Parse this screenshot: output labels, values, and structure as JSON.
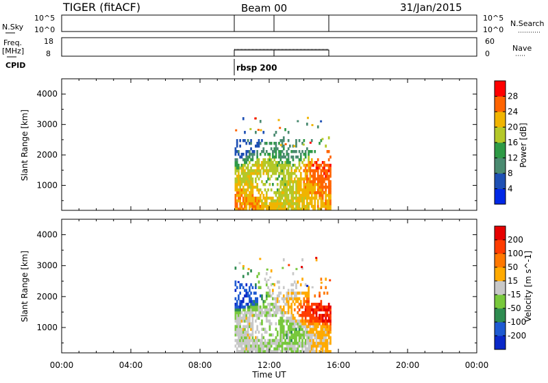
{
  "header": {
    "title": "TIGER (fitACF)",
    "beam": "Beam 00",
    "date": "31/Jan/2015"
  },
  "strips": {
    "nsky": {
      "label": "N.Sky",
      "ticks": [
        "10^5",
        "10^0"
      ]
    },
    "nsearch": {
      "label": "N.Search",
      "ticks": [
        "10^5",
        "10^0"
      ]
    },
    "freq": {
      "label": "Freq.",
      "unit": "[MHz]",
      "ticks": [
        "18",
        "8"
      ]
    },
    "nave": {
      "label": "Nave",
      "ticks": [
        "60",
        "0"
      ]
    },
    "cpid": {
      "label": "CPID",
      "value": "rbsp 200"
    }
  },
  "chart_data": [
    {
      "type": "heatmap",
      "name": "power",
      "ylabel": "Slant Range [km]",
      "xlabel": "Time UT",
      "xlim": [
        0,
        24
      ],
      "ylim": [
        180,
        4500
      ],
      "x_ticks": [
        "00:00",
        "04:00",
        "08:00",
        "12:00",
        "16:00",
        "20:00",
        "00:00"
      ],
      "y_ticks": [
        1000,
        2000,
        3000,
        4000
      ],
      "colorbar": {
        "label": "Power [dB]",
        "range": [
          0,
          32
        ],
        "tick_labels": [
          "28",
          "24",
          "20",
          "16",
          "12",
          "8",
          "4"
        ],
        "colors": [
          "#0028e6",
          "#1e50b4",
          "#4a8a70",
          "#2e9a46",
          "#b4c828",
          "#f0b400",
          "#ff6400",
          "#ff0000"
        ]
      },
      "data_extent": {
        "start_time": 10.0,
        "end_time": 15.5,
        "min_range": 180,
        "max_range": 3300
      },
      "approx_values": [
        {
          "time": 10.5,
          "range": 300,
          "value": 24
        },
        {
          "time": 11.0,
          "range": 600,
          "value": 22
        },
        {
          "time": 11.5,
          "range": 1300,
          "value": 20
        },
        {
          "time": 12.0,
          "range": 1100,
          "value": 16
        },
        {
          "time": 13.0,
          "range": 900,
          "value": 18
        },
        {
          "time": 14.0,
          "range": 900,
          "value": 22
        },
        {
          "time": 15.0,
          "range": 1200,
          "value": 26
        },
        {
          "time": 15.2,
          "range": 1500,
          "value": 28
        },
        {
          "time": 13.5,
          "range": 2200,
          "value": 10
        },
        {
          "time": 10.2,
          "range": 2300,
          "value": 6
        }
      ]
    },
    {
      "type": "heatmap",
      "name": "velocity",
      "ylabel": "Slant Range [km]",
      "xlabel": "Time UT",
      "xlim": [
        0,
        24
      ],
      "ylim": [
        180,
        4500
      ],
      "x_ticks": [
        "00:00",
        "04:00",
        "08:00",
        "12:00",
        "16:00",
        "20:00",
        "00:00"
      ],
      "y_ticks": [
        1000,
        2000,
        3000,
        4000
      ],
      "colorbar": {
        "label": "Velocity [m s^-1]",
        "range": [
          -250,
          250
        ],
        "tick_labels": [
          "200",
          "100",
          "50",
          "15",
          "-15",
          "-50",
          "-100",
          "-200"
        ],
        "colors": [
          "#0a28c8",
          "#1e5ad2",
          "#2e8c50",
          "#78c83c",
          "#c8c8c8",
          "#ffaa00",
          "#ff7800",
          "#ff3c00",
          "#e60000"
        ]
      },
      "data_extent": {
        "start_time": 10.0,
        "end_time": 15.5,
        "min_range": 180,
        "max_range": 3300
      },
      "approx_values": [
        {
          "time": 10.3,
          "range": 1850,
          "value": -200
        },
        {
          "time": 10.8,
          "range": 1300,
          "value": 0
        },
        {
          "time": 11.2,
          "range": 800,
          "value": 0
        },
        {
          "time": 12.5,
          "range": 900,
          "value": -40
        },
        {
          "time": 13.5,
          "range": 800,
          "value": -60
        },
        {
          "time": 14.5,
          "range": 1400,
          "value": 180
        },
        {
          "time": 15.2,
          "range": 1300,
          "value": 200
        },
        {
          "time": 14.8,
          "range": 900,
          "value": 40
        },
        {
          "time": 13.2,
          "range": 2200,
          "value": 30
        }
      ]
    }
  ]
}
